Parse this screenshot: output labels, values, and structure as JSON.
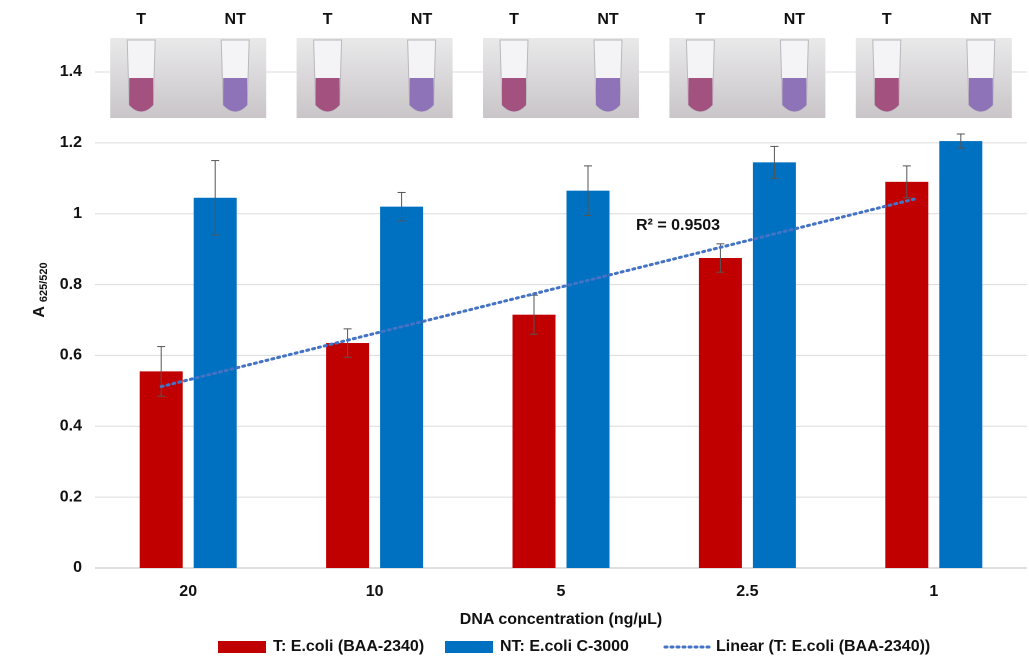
{
  "chart_data": {
    "type": "bar",
    "categories": [
      "20",
      "10",
      "5",
      "2.5",
      "1"
    ],
    "series": [
      {
        "name": "T: E.coli (BAA-2340)",
        "color": "#c00000",
        "values": [
          0.555,
          0.635,
          0.715,
          0.875,
          1.09
        ],
        "errors": [
          0.07,
          0.04,
          0.055,
          0.04,
          0.045
        ]
      },
      {
        "name": "NT: E.coli  C-3000",
        "color": "#0070c0",
        "values": [
          1.045,
          1.02,
          1.065,
          1.145,
          1.205
        ],
        "errors": [
          0.105,
          0.04,
          0.07,
          0.045,
          0.02
        ]
      }
    ],
    "trendline": {
      "name": "Linear (T: E.coli (BAA-2340))",
      "series": 0,
      "color": "#4472c4",
      "annotation": "R² = 0.9503"
    },
    "tube_labels": [
      "T",
      "NT"
    ],
    "x_label": "DNA concentration (ng/µL)",
    "y_label": "A",
    "y_label_sub": "625/520",
    "ylim": [
      0,
      1.5
    ],
    "yticks": [
      0,
      0.2,
      0.4,
      0.6,
      0.8,
      1,
      1.2,
      1.4
    ],
    "grid": true
  }
}
